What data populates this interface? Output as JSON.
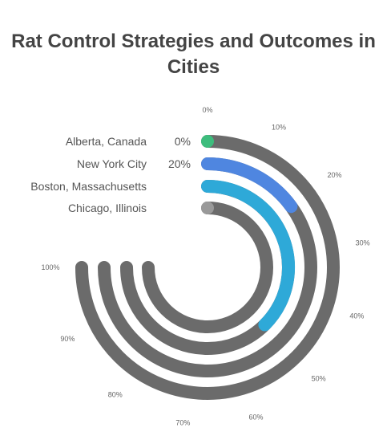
{
  "chart_data": {
    "type": "radial-bar",
    "title": "Rat Control Strategies and Outcomes in Cities",
    "axis_max": 100,
    "ticks": [
      "0%",
      "10%",
      "20%",
      "30%",
      "40%",
      "50%",
      "60%",
      "70%",
      "80%",
      "90%",
      "100%"
    ],
    "categories": [
      "Alberta, Canada",
      "New York City",
      "Boston, Massachusetts",
      "Chicago, Illinois"
    ],
    "values": [
      0,
      20,
      50,
      0
    ],
    "value_labels": [
      "0%",
      "20%",
      "",
      ""
    ],
    "colors": [
      "#3dbd7d",
      "#4f86e0",
      "#2ea9d8",
      "#999999"
    ],
    "track_color": "#6b6b6b"
  }
}
